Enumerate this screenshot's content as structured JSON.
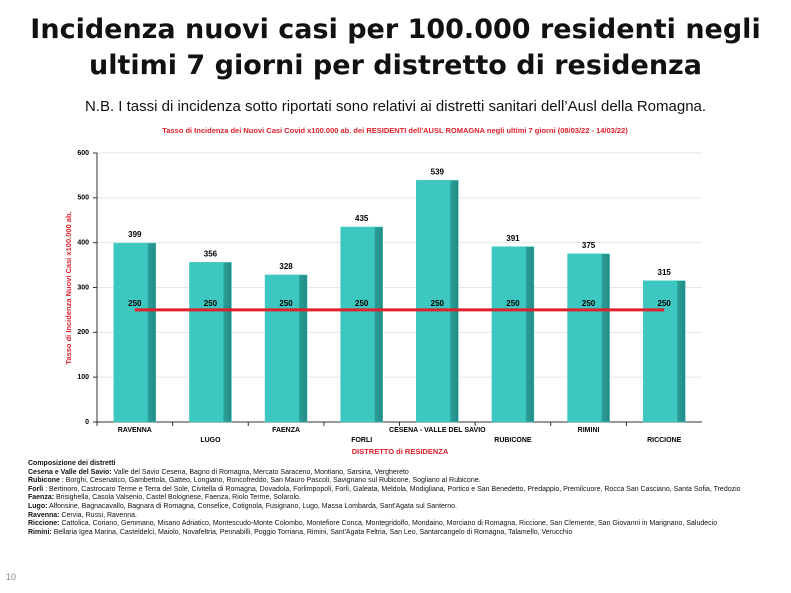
{
  "slide": {
    "title_lines": [
      "Incidenza nuovi casi per 100.000 residenti negli",
      "ultimi 7 giorni per distretto di residenza"
    ],
    "note": "N.B. I tassi di incidenza sotto riportati sono relativi ai distretti sanitari dell’Ausl della Romagna.",
    "page_number": "10"
  },
  "chart_data": {
    "type": "bar",
    "title": "Tasso di Incidenza dei Nuovi Casi Covid x100.000 ab. dei RESIDENTI dell'AUSL ROMAGNA negli ultimi 7 giorni (08/03/22 - 14/03/22)",
    "x_label": "DISTRETTO di RESIDENZA",
    "y_label": "Tasso di Incidenza Nuovi Casi x100.000 ab.",
    "categories": [
      "RAVENNA",
      "LUGO",
      "FAENZA",
      "FORLI",
      "CESENA - VALLE DEL SAVIO",
      "RUBICONE",
      "RIMINI",
      "RICCIONE"
    ],
    "series": [
      {
        "color": "#3cc8c0",
        "values": [
          399,
          356,
          328,
          435,
          539,
          391,
          375,
          315
        ]
      },
      {
        "type": "line",
        "color": "#e0202a",
        "values": [
          250,
          250,
          250,
          250,
          250,
          250,
          250,
          250
        ]
      }
    ],
    "ylim": [
      0,
      600
    ],
    "yticks": [
      0,
      100,
      200,
      300,
      400,
      500,
      600
    ],
    "grid": true
  },
  "composition": {
    "heading": "Composizione dei distretti",
    "items": [
      {
        "name": "Cesena e Valle del Savio:",
        "text": "Valle del Savio Cesena, Bagno di Romagna, Mercato Saraceno, Montiano, Sarsina, Verghereto"
      },
      {
        "name": "Rubicone",
        "text": ": Borghi, Cesenatico, Gambettola, Gatteo, Longiano, Roncofreddo, San Mauro Pascoli, Savignano sul Rubicone, Sogliano al Rubicone."
      },
      {
        "name": "Forlì",
        "text": ": Bertinoro, Castrocaro Terme e Terra del Sole, Civitella di Romagna, Dovadola, Forlimpopoli, Forlì, Galeata, Meldola, Modigliana, Portico e San Benedetto, Predappio, Premilcuore, Rocca San Casciano, Santa Sofia, Tredozio"
      },
      {
        "name": "Faenza:",
        "text": "Brisighella, Casola Valsenio, Castel Bolognese, Faenza, Riolo Terme, Solarolo."
      },
      {
        "name": "Lugo:",
        "text": "Alfonsine, Bagnacavallo, Bagnara di Romagna, Conselice, Cotignola, Fusignano, Lugo, Massa Lombarda, Sant'Agata sul Santerno."
      },
      {
        "name": "Ravenna:",
        "text": "Cervia, Russi, Ravenna."
      },
      {
        "name": "Riccione:",
        "text": "Cattolica, Coriano, Gemmano, Misano Adriatico, Montescudo-Monte Colombo, Montefiore Conca, Montegridolfo, Mondaino, Morciano di Romagna, Riccione, San Clemente, San Giovanni in Marignano, Saludecio"
      },
      {
        "name": "Rimini:",
        "text": "Bellaria Igea Marina, Casteldelci, Maiolo, Novafeltria, Pennabilli, Poggio Torriana, Rimini, Sant'Agata Feltria, San Leo, Santarcangelo di Romagna, Talamello, Verucchio"
      }
    ]
  }
}
